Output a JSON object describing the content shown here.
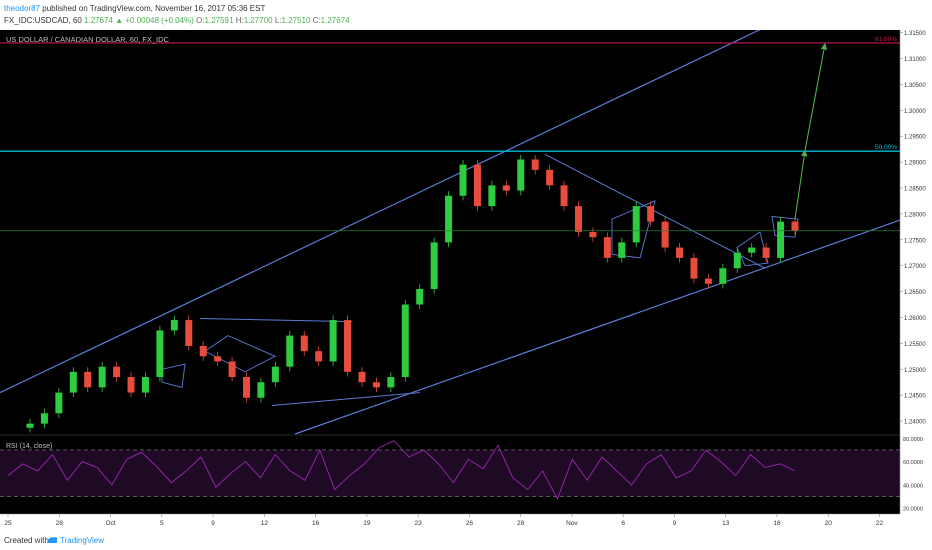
{
  "header": {
    "author": "theodor87",
    "published_text": "published on TradingView.com, November 16, 2017 05:36 EST",
    "symbol_line": "FX_IDC:USDCAD, 60",
    "last_price": "1.27674",
    "change_text": "+0.00048 (+0.04%)",
    "o_label": "O:",
    "o_value": "1.27591",
    "h_label": "H:",
    "h_value": "1.27700",
    "l_label": "L:",
    "l_value": "1.27510",
    "c_label": "C:",
    "c_value": "1.27674"
  },
  "footer": {
    "created_with": "Created with",
    "brand": "TradingView"
  },
  "colors": {
    "background": "#000000",
    "up_candle": "#2ecc40",
    "down_candle": "#e74c3c",
    "trendline": "#5b7bd5",
    "fib_line": "#00bcd4",
    "fib_618": "#c2185b",
    "price_line": "#2e7d32",
    "rsi_line": "#9c27b0",
    "projection": "#4caf50"
  },
  "chart_data": [
    {
      "type": "line",
      "title": "US DOLLAR / CANADIAN DOLLAR, 60, FX_IDC",
      "ylim": [
        1.2375,
        1.3155
      ],
      "y_ticks": [
        1.24,
        1.245,
        1.25,
        1.255,
        1.26,
        1.265,
        1.27,
        1.275,
        1.28,
        1.285,
        1.29,
        1.295,
        1.3,
        1.305,
        1.31,
        1.315
      ],
      "y_tick_labels": [
        "1.24000",
        "1.24500",
        "1.25000",
        "1.25500",
        "1.26000",
        "1.26500",
        "1.27000",
        "1.27500",
        "1.28000",
        "1.28500",
        "1.29000",
        "1.29500",
        "1.30000",
        "1.30500",
        "1.31000",
        "1.31500"
      ],
      "x_tick_labels": [
        "25",
        "28",
        "Oct",
        "5",
        "9",
        "12",
        "16",
        "19",
        "23",
        "26",
        "28",
        "Nov",
        "6",
        "9",
        "13",
        "16",
        "20",
        "22"
      ],
      "series": [
        {
          "values": [
            1.2395,
            1.2415,
            1.2455,
            1.2495,
            1.2465,
            1.2505,
            1.2485,
            1.2455,
            1.2485,
            1.2575,
            1.2595,
            1.2545,
            1.2525,
            1.2515,
            1.2485,
            1.2445,
            1.2475,
            1.2505,
            1.2565,
            1.2535,
            1.2515,
            1.2595,
            1.2495,
            1.2475,
            1.2465,
            1.2485,
            1.2625,
            1.2655,
            1.2745,
            1.2835,
            1.2895,
            1.2815,
            1.2855,
            1.2845,
            1.2905,
            1.2885,
            1.2855,
            1.2815,
            1.2765,
            1.2755,
            1.2715,
            1.2745,
            1.2815,
            1.2785,
            1.2735,
            1.2715,
            1.2675,
            1.2665,
            1.2695,
            1.2725,
            1.2735,
            1.2715,
            1.2785,
            1.2768
          ]
        }
      ],
      "annotations": {
        "fib_50_label": "50.00%",
        "fib_50_value": 1.2921,
        "fib_50_price_label": "1.29212",
        "fib_618_label": "61.80%",
        "fib_618_value": 1.313,
        "current_price_label": "1.27674",
        "current_price_value": 1.27674,
        "countdown_label": "22:18"
      }
    },
    {
      "type": "line",
      "title": "RSI (14, close)",
      "ylim": [
        15,
        82
      ],
      "y_tick_labels": [
        "80.0000",
        "60.0000",
        "40.0000",
        "20.0000"
      ],
      "y_tick_values": [
        80,
        60,
        40,
        20
      ],
      "band_upper": 70,
      "band_lower": 30,
      "series": [
        {
          "values": [
            48,
            58,
            52,
            66,
            44,
            60,
            55,
            40,
            62,
            68,
            56,
            42,
            52,
            64,
            38,
            50,
            60,
            46,
            66,
            52,
            44,
            70,
            36,
            48,
            58,
            72,
            78,
            64,
            70,
            58,
            42,
            62,
            54,
            74,
            46,
            36,
            52,
            28,
            62,
            44,
            64,
            52,
            40,
            58,
            66,
            46,
            52,
            70,
            60,
            48,
            66,
            55,
            58,
            52
          ]
        }
      ]
    }
  ]
}
